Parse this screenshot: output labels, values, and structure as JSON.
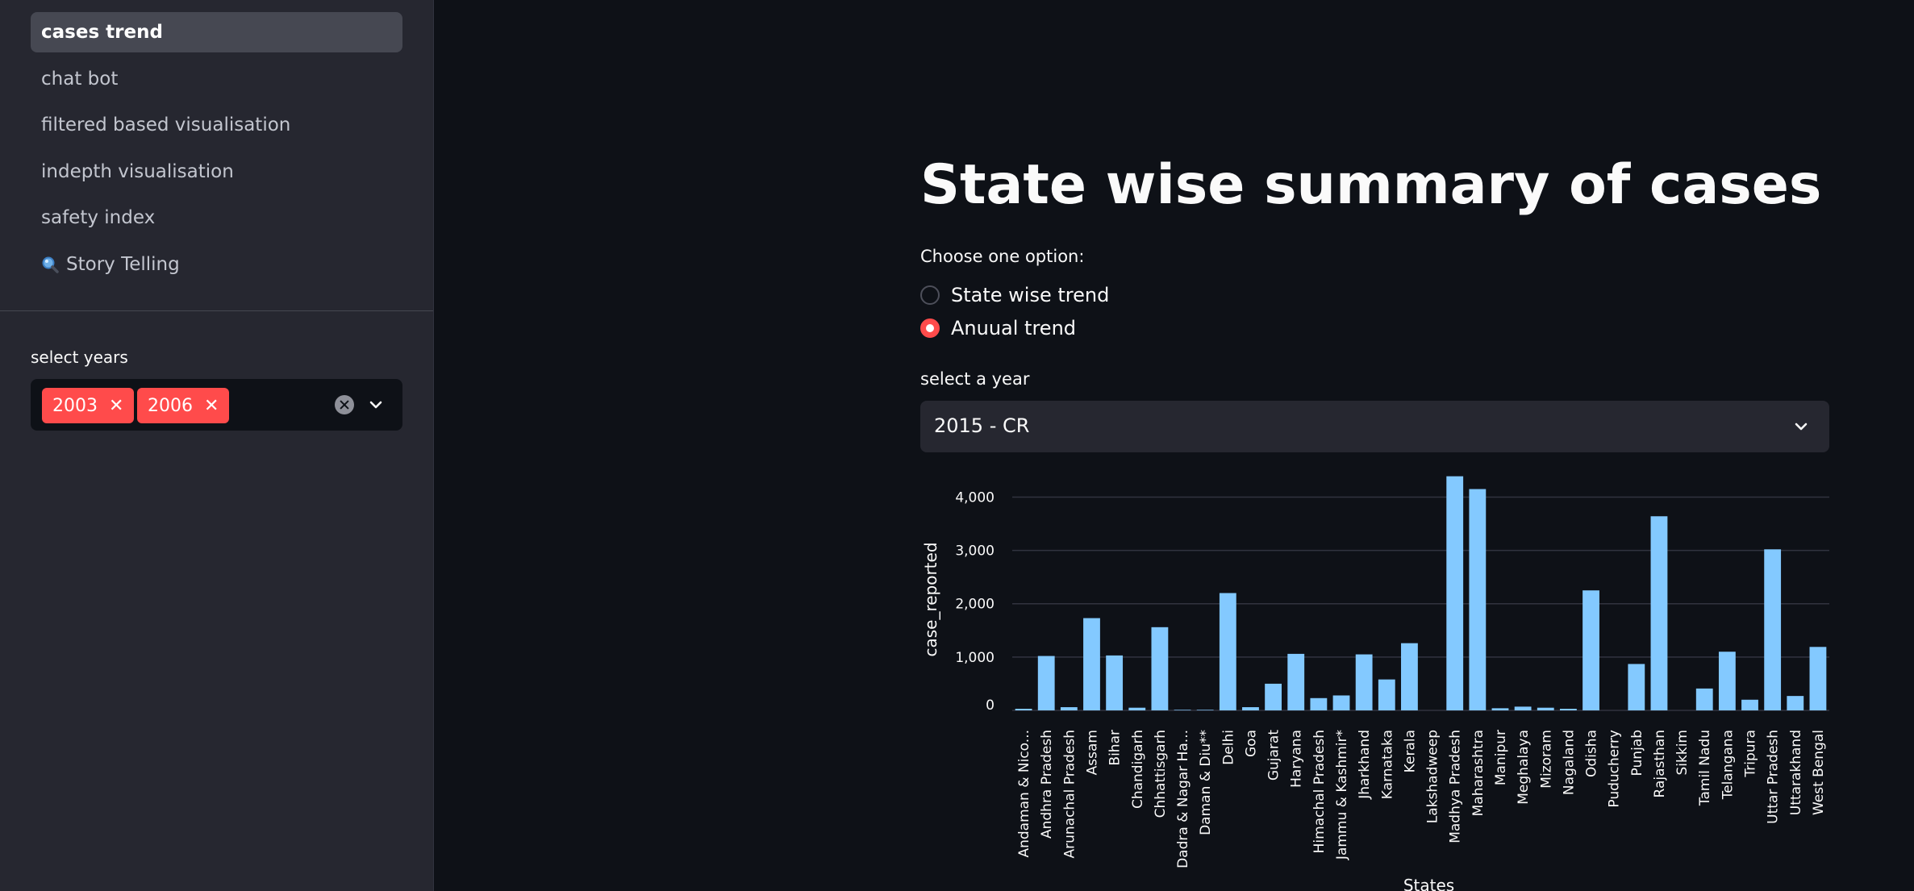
{
  "sidebar": {
    "nav": [
      {
        "label": "cases trend",
        "active": true
      },
      {
        "label": "chat bot",
        "active": false
      },
      {
        "label": "filtered based visualisation",
        "active": false
      },
      {
        "label": "indepth visualisation",
        "active": false
      },
      {
        "label": "safety index",
        "active": false
      },
      {
        "label": "Story Telling",
        "active": false,
        "icon": "magnifier-icon"
      }
    ],
    "years_label": "select years",
    "selected_years": [
      "2003",
      "2006"
    ]
  },
  "main": {
    "title": "State wise summary of cases",
    "choose_label": "Choose one option:",
    "radio_options": [
      {
        "label": "State wise trend",
        "checked": false
      },
      {
        "label": "Anuual trend",
        "checked": true
      }
    ],
    "year_label": "select a year",
    "year_value": "2015 - CR"
  },
  "colors": {
    "accent": "#ff4b4b",
    "bar": "#83c9ff",
    "background": "#0e1117",
    "sidebar": "#262730"
  },
  "chart_data": {
    "type": "bar",
    "ylabel": "case_reported",
    "xlabel": "States",
    "ylim": [
      0,
      4400
    ],
    "yticks": [
      0,
      1000,
      2000,
      3000,
      4000
    ],
    "ytick_labels": [
      "0",
      "1,000",
      "2,000",
      "3,000",
      "4,000"
    ],
    "grid": true,
    "categories": [
      "Andaman & Nico...",
      "Andhra Pradesh",
      "Arunachal Pradesh",
      "Assam",
      "Bihar",
      "Chandigarh",
      "Chhattisgarh",
      "Dadra & Nagar Ha...",
      "Daman & Diu**",
      "Delhi",
      "Goa",
      "Gujarat",
      "Haryana",
      "Himachal Pradesh",
      "Jammu & Kashmir*",
      "Jharkhand",
      "Karnataka",
      "Kerala",
      "Lakshadweep",
      "Madhya Pradesh",
      "Maharashtra",
      "Manipur",
      "Meghalaya",
      "Mizoram",
      "Nagaland",
      "Odisha",
      "Puducherry",
      "Punjab",
      "Rajasthan",
      "Sikkim",
      "Tamil Nadu",
      "Telangana",
      "Tripura",
      "Uttar Pradesh",
      "Uttarakhand",
      "West Bengal"
    ],
    "values": [
      30,
      1020,
      60,
      1730,
      1030,
      50,
      1560,
      10,
      10,
      2200,
      60,
      500,
      1060,
      230,
      280,
      1050,
      580,
      1260,
      0,
      4390,
      4150,
      40,
      70,
      50,
      30,
      2250,
      0,
      870,
      3640,
      0,
      410,
      1100,
      200,
      3020,
      270,
      1190
    ]
  }
}
